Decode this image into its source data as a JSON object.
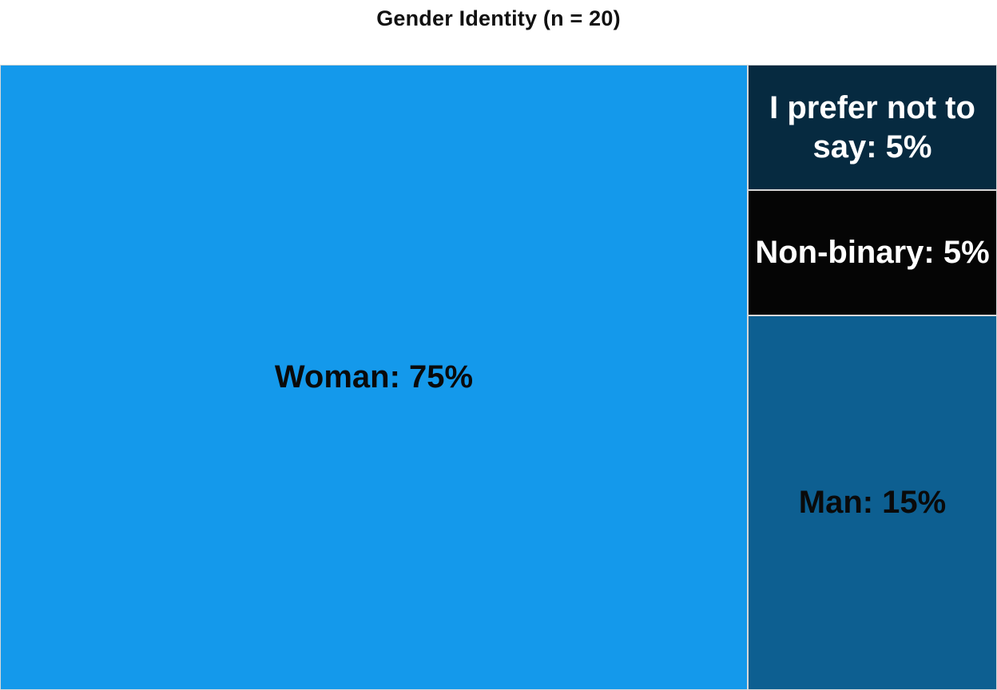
{
  "chart_data": {
    "type": "treemap",
    "title": "Gender Identity (n = 20)",
    "items": [
      {
        "name": "Woman",
        "value": 75,
        "label": "Woman: 75%",
        "color": "#1499eb",
        "text_color": "#0a0a0a"
      },
      {
        "name": "I prefer not to say",
        "value": 5,
        "label": "I prefer not to say: 5%",
        "color": "#062a40",
        "text_color": "#ffffff"
      },
      {
        "name": "Non-binary",
        "value": 5,
        "label": "Non-binary: 5%",
        "color": "#050505",
        "text_color": "#ffffff"
      },
      {
        "name": "Man",
        "value": 15,
        "label": "Man: 15%",
        "color": "#0d5f91",
        "text_color": "#0a0a0a"
      }
    ]
  }
}
